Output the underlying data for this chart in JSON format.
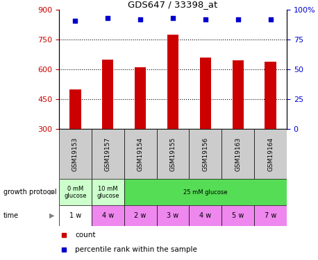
{
  "title": "GDS647 / 33398_at",
  "samples": [
    "GSM19153",
    "GSM19157",
    "GSM19154",
    "GSM19155",
    "GSM19156",
    "GSM19163",
    "GSM19164"
  ],
  "bar_values": [
    500,
    650,
    610,
    775,
    660,
    645,
    640
  ],
  "percentile_values": [
    91,
    93,
    92,
    93,
    92,
    92,
    92
  ],
  "ylim_left": [
    300,
    900
  ],
  "ylim_right": [
    0,
    100
  ],
  "yticks_left": [
    300,
    450,
    600,
    750,
    900
  ],
  "yticks_right": [
    0,
    25,
    50,
    75,
    100
  ],
  "bar_color": "#cc0000",
  "dot_color": "#0000cc",
  "left_tick_color": "#cc0000",
  "right_tick_color": "#0000cc",
  "gp_spans": [
    [
      0,
      1,
      "0 mM\nglucose",
      "#ccffcc"
    ],
    [
      1,
      2,
      "10 mM\nglucose",
      "#ccffcc"
    ],
    [
      2,
      7,
      "25 mM glucose",
      "#55dd55"
    ]
  ],
  "time_labels": [
    "1 w",
    "4 w",
    "2 w",
    "3 w",
    "4 w",
    "5 w",
    "7 w"
  ],
  "time_bg_first": "#ffffff",
  "time_bg_rest": "#ee88ee",
  "sample_bg_color": "#cccccc",
  "legend_count_color": "#cc0000",
  "legend_pct_color": "#0000cc"
}
